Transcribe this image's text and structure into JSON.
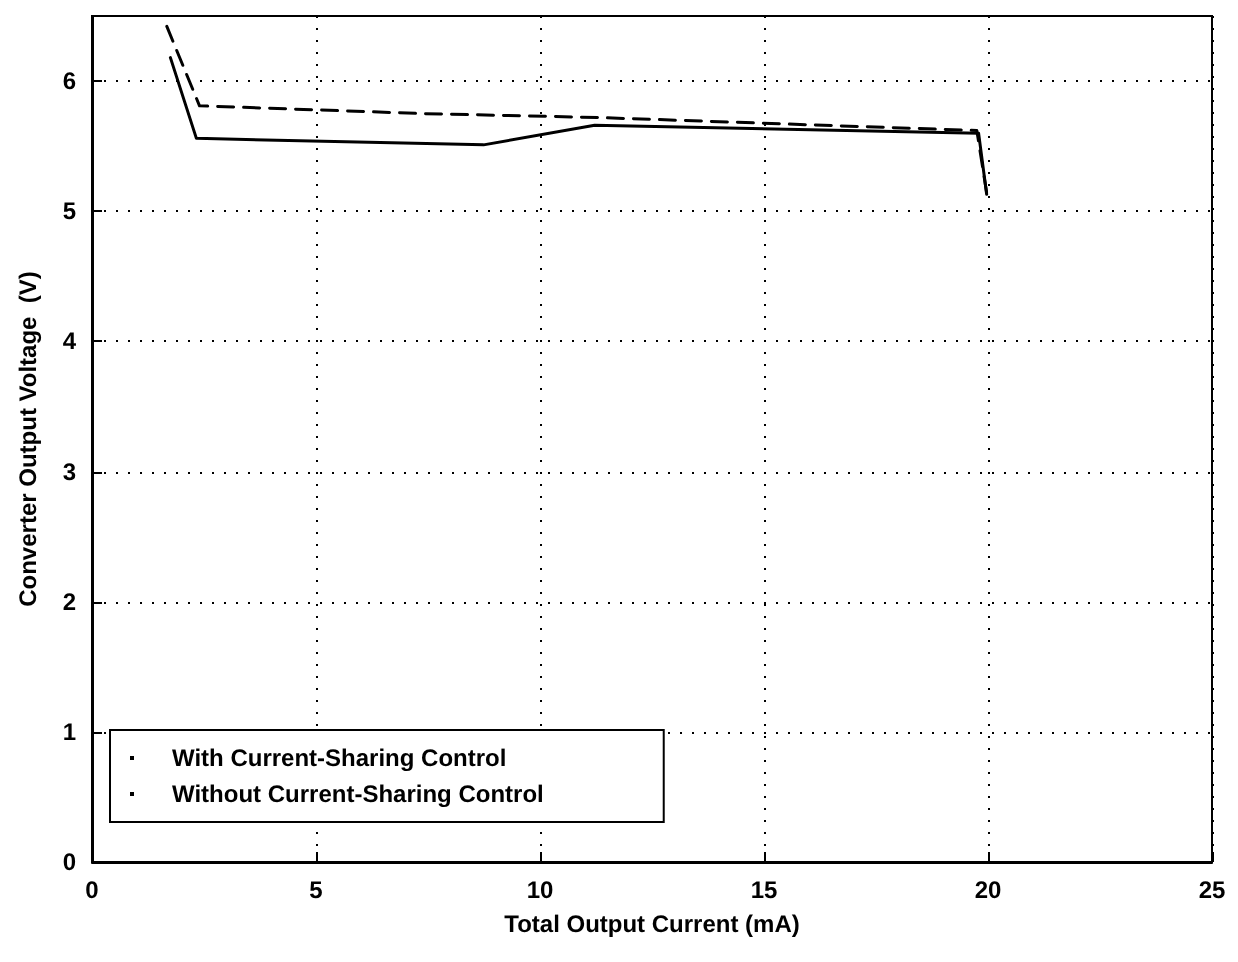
{
  "chart_data": {
    "type": "line",
    "xlabel": "Total Output Current (mA)",
    "ylabel": "Converter Output Voltage  (V)",
    "xlim": [
      0,
      25
    ],
    "xticks": [
      0,
      5,
      10,
      15,
      20,
      25
    ],
    "ylim": [
      0,
      6.5
    ],
    "yticks": [
      0,
      1,
      2,
      3,
      4,
      5,
      6
    ],
    "grid": true,
    "legend": "bottom left",
    "marker": "none",
    "series": [
      {
        "name": "With Current-Sharing Control",
        "color": "#000000",
        "line_style": "solid",
        "x": [
          1.75,
          2.33,
          8.74,
          11.22,
          19.79,
          19.97
        ],
        "values": [
          6.18,
          5.56,
          5.51,
          5.66,
          5.6,
          5.13
        ]
      },
      {
        "name": "Without Current-Sharing Control",
        "color": "#000000",
        "line_style": "dashed",
        "x": [
          1.67,
          2.4,
          7.4,
          11.3,
          19.75,
          19.99
        ],
        "values": [
          6.42,
          5.81,
          5.75,
          5.72,
          5.62,
          5.1
        ]
      }
    ]
  }
}
